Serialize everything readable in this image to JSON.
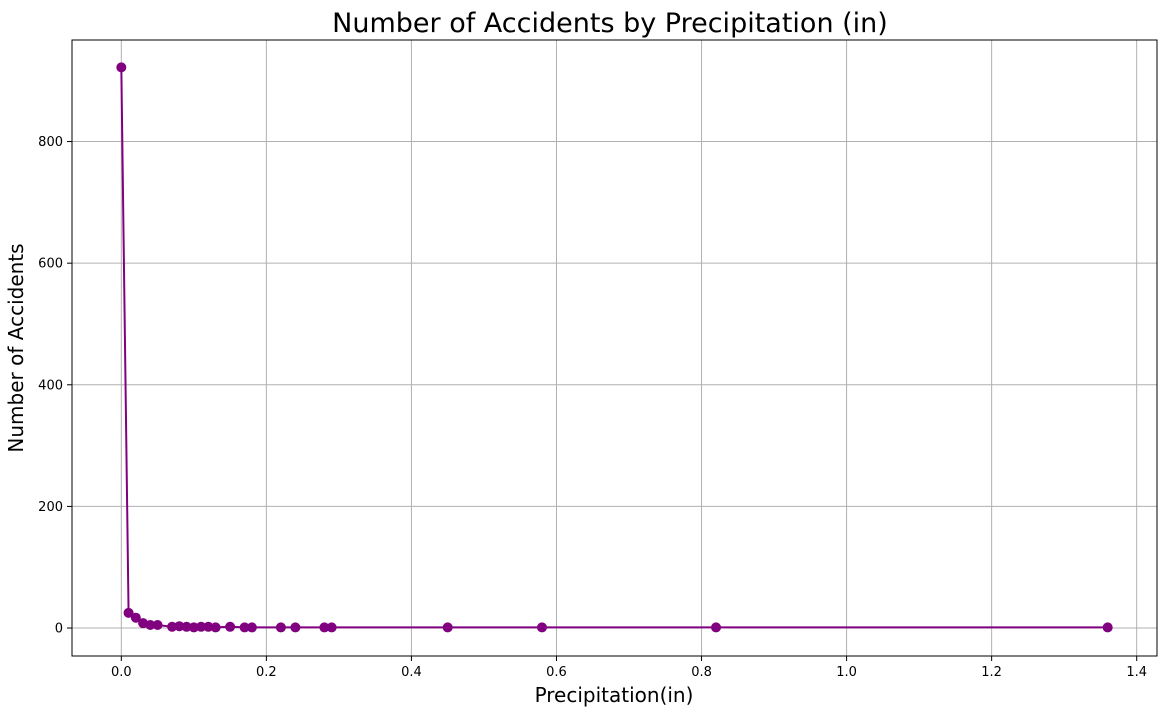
{
  "chart_data": {
    "type": "line",
    "title": "Number of Accidents by Precipitation (in)",
    "xlabel": "Precipitation(in)",
    "ylabel": "Number of Accidents",
    "xlim": [
      -0.068,
      1.428
    ],
    "ylim": [
      -46,
      967
    ],
    "xticks": [
      0.0,
      0.2,
      0.4,
      0.6,
      0.8,
      1.0,
      1.2,
      1.4
    ],
    "xtick_labels": [
      "0.0",
      "0.2",
      "0.4",
      "0.6",
      "0.8",
      "1.0",
      "1.2",
      "1.4"
    ],
    "yticks": [
      0,
      200,
      400,
      600,
      800
    ],
    "ytick_labels": [
      "0",
      "200",
      "400",
      "600",
      "800"
    ],
    "grid": true,
    "legend": "none",
    "color": "#800080",
    "marker": "circle",
    "series": [
      {
        "x": [
          0.0,
          0.01,
          0.02,
          0.03,
          0.04,
          0.05,
          0.07,
          0.08,
          0.09,
          0.1,
          0.11,
          0.12,
          0.13,
          0.15,
          0.17,
          0.18,
          0.22,
          0.24,
          0.28,
          0.29,
          0.45,
          0.58,
          0.82,
          1.36
        ],
        "y": [
          922,
          25,
          17,
          8,
          5,
          5,
          2,
          3,
          2,
          1,
          2,
          2,
          1,
          2,
          1,
          1,
          1,
          1,
          1,
          1,
          1,
          1,
          1,
          1
        ]
      }
    ]
  }
}
